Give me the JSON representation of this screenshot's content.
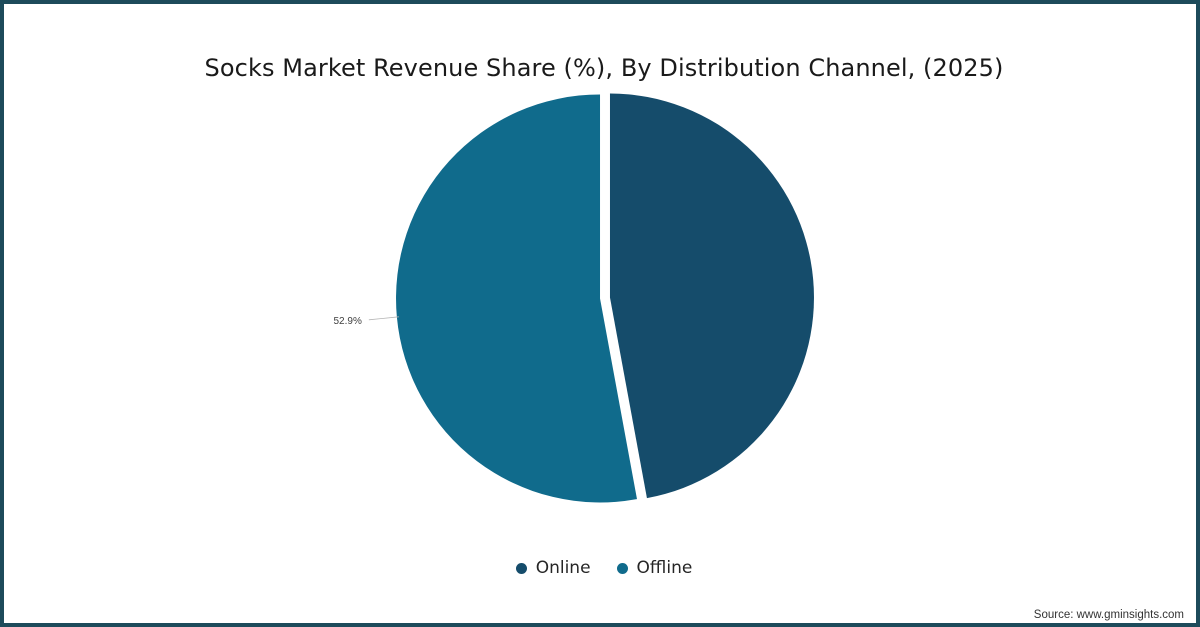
{
  "chart_data": {
    "type": "pie",
    "title": "Socks Market Revenue Share (%), By Distribution Channel, (2025)",
    "categories": [
      "Online",
      "Offline"
    ],
    "values": [
      47.1,
      52.9
    ],
    "colors": [
      "#154c6b",
      "#106b8c"
    ],
    "data_labels": [
      "",
      "52.9%"
    ],
    "legend_position": "bottom"
  },
  "source": "Source: www.gminsights.com"
}
